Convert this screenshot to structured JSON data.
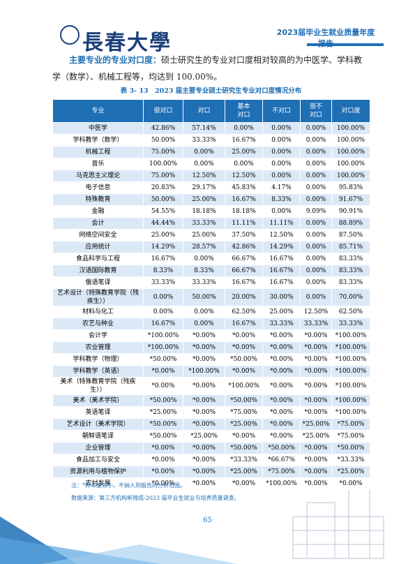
{
  "header": {
    "logo_text": "長春大學",
    "banner": "2023届毕业生就业质量年度报告"
  },
  "paragraph": {
    "lead": "主要专业的专业对口度：",
    "text": "硕士研究生的专业对口度相对较高的为中医学、学科教学（数学）、机械工程等，均达到 100.00%。"
  },
  "table": {
    "caption": "表 3- 13　2023 届主要专业硕士研究生专业对口度情况分布",
    "columns": [
      "专业",
      "很对口",
      "对口",
      "基本对口",
      "不对口",
      "很不对口",
      "对口度"
    ],
    "rows": [
      [
        "中医学",
        "42.86%",
        "57.14%",
        "0.00%",
        "0.00%",
        "0.00%",
        "100.00%"
      ],
      [
        "学科教学（数学）",
        "50.00%",
        "33.33%",
        "16.67%",
        "0.00%",
        "0.00%",
        "100.00%"
      ],
      [
        "机械工程",
        "75.00%",
        "0.00%",
        "25.00%",
        "0.00%",
        "0.00%",
        "100.00%"
      ],
      [
        "音乐",
        "100.00%",
        "0.00%",
        "0.00%",
        "0.00%",
        "0.00%",
        "100.00%"
      ],
      [
        "马克思主义理论",
        "75.00%",
        "12.50%",
        "12.50%",
        "0.00%",
        "0.00%",
        "100.00%"
      ],
      [
        "电子信息",
        "20.83%",
        "29.17%",
        "45.83%",
        "4.17%",
        "0.00%",
        "95.83%"
      ],
      [
        "特殊教育",
        "50.00%",
        "25.00%",
        "16.67%",
        "8.33%",
        "0.00%",
        "91.67%"
      ],
      [
        "金融",
        "54.55%",
        "18.18%",
        "18.18%",
        "0.00%",
        "9.09%",
        "90.91%"
      ],
      [
        "会计",
        "44.44%",
        "33.33%",
        "11.11%",
        "11.11%",
        "0.00%",
        "88.89%"
      ],
      [
        "网络空间安全",
        "25.00%",
        "25.00%",
        "37.50%",
        "12.50%",
        "0.00%",
        "87.50%"
      ],
      [
        "应用统计",
        "14.29%",
        "28.57%",
        "42.86%",
        "14.29%",
        "0.00%",
        "85.71%"
      ],
      [
        "食品科学与工程",
        "16.67%",
        "0.00%",
        "66.67%",
        "16.67%",
        "0.00%",
        "83.33%"
      ],
      [
        "汉语国际教育",
        "8.33%",
        "8.33%",
        "66.67%",
        "16.67%",
        "0.00%",
        "83.33%"
      ],
      [
        "俄语笔译",
        "33.33%",
        "33.33%",
        "16.67%",
        "16.67%",
        "0.00%",
        "83.33%"
      ],
      [
        "艺术设计（特殊教育学院（残疾生））",
        "0.00%",
        "50.00%",
        "20.00%",
        "30.00%",
        "0.00%",
        "70.00%"
      ],
      [
        "材料与化工",
        "0.00%",
        "0.00%",
        "62.50%",
        "25.00%",
        "12.50%",
        "62.50%"
      ],
      [
        "农艺与种业",
        "16.67%",
        "0.00%",
        "16.67%",
        "33.33%",
        "33.33%",
        "33.33%"
      ],
      [
        "会计学",
        "*100.00%",
        "*0.00%",
        "*0.00%",
        "*0.00%",
        "*0.00%",
        "*100.00%"
      ],
      [
        "农业管理",
        "*100.00%",
        "*0.00%",
        "*0.00%",
        "*0.00%",
        "*0.00%",
        "*100.00%"
      ],
      [
        "学科教学（物理）",
        "*50.00%",
        "*0.00%",
        "*50.00%",
        "*0.00%",
        "*0.00%",
        "*100.00%"
      ],
      [
        "学科教学（英语）",
        "*0.00%",
        "*100.00%",
        "*0.00%",
        "*0.00%",
        "*0.00%",
        "*100.00%"
      ],
      [
        "美术（特殊教育学院（残疾生））",
        "*0.00%",
        "*0.00%",
        "*100.00%",
        "*0.00%",
        "*0.00%",
        "*100.00%"
      ],
      [
        "美术（美术学院）",
        "*50.00%",
        "*0.00%",
        "*50.00%",
        "*0.00%",
        "*0.00%",
        "*100.00%"
      ],
      [
        "英语笔译",
        "*25.00%",
        "*0.00%",
        "*75.00%",
        "*0.00%",
        "*0.00%",
        "*100.00%"
      ],
      [
        "艺术设计（美术学院）",
        "*50.00%",
        "*0.00%",
        "*25.00%",
        "*0.00%",
        "*25.00%",
        "*75.00%"
      ],
      [
        "朝鲜语笔译",
        "*50.00%",
        "*25.00%",
        "*0.00%",
        "*0.00%",
        "*25.00%",
        "*75.00%"
      ],
      [
        "企业管理",
        "*0.00%",
        "*0.00%",
        "*50.00%",
        "*50.00%",
        "*0.00%",
        "*50.00%"
      ],
      [
        "食品加工与安全",
        "*0.00%",
        "*0.00%",
        "*33.33%",
        "*66.67%",
        "*0.00%",
        "*33.33%"
      ],
      [
        "资源利用与植物保护",
        "*0.00%",
        "*0.00%",
        "*25.00%",
        "*75.00%",
        "*0.00%",
        "*25.00%"
      ],
      [
        "农村发展",
        "*0.00%",
        "*0.00%",
        "*0.00%",
        "*100.00%",
        "*0.00%",
        "*0.00%"
      ]
    ]
  },
  "notes": [
    "注：*样本量较小，不纳入到报告的分析范围。",
    "数据来源：第三方机构新锦成-2023 届毕业生就业与培养质量调查。"
  ],
  "page_number": "65"
}
